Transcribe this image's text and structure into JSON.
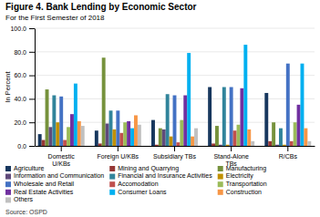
{
  "chart_data": {
    "type": "bar",
    "title": "Figure 4. Bank Lending by Economic Sector",
    "subtitle": "For the First Semester of 2018",
    "ylabel": "In Percent",
    "source": "Source: OSPD",
    "categories": [
      "Domestic\nU/KBs",
      "Foreign U/KBs",
      "Subsidiary TBs",
      "Stand-Alone\nTBs",
      "R/CBs"
    ],
    "series": [
      {
        "name": "Agriculture",
        "color": "#17375e",
        "values": [
          10,
          13,
          22,
          50,
          45
        ]
      },
      {
        "name": "Mining and Quarrying",
        "color": "#953735",
        "values": [
          5,
          2,
          1,
          2,
          4
        ]
      },
      {
        "name": "Manufacturing",
        "color": "#76923c",
        "values": [
          48,
          75,
          15,
          17,
          20
        ]
      },
      {
        "name": "Information and Communication",
        "color": "#604a7b",
        "values": [
          16,
          19,
          14,
          1,
          1
        ]
      },
      {
        "name": "Financial and Insurance Activities",
        "color": "#31849b",
        "values": [
          43,
          30,
          44,
          50,
          15
        ]
      },
      {
        "name": "Electricity",
        "color": "#c09000",
        "values": [
          20,
          14,
          8,
          1,
          1
        ]
      },
      {
        "name": "Wholesale and Retail",
        "color": "#4472c4",
        "values": [
          42,
          30,
          43,
          50,
          70
        ]
      },
      {
        "name": "Accomodation",
        "color": "#c0504d",
        "values": [
          5,
          11,
          3,
          13,
          4
        ]
      },
      {
        "name": "Transportation",
        "color": "#9bbb59",
        "values": [
          16,
          20,
          22,
          18,
          20
        ]
      },
      {
        "name": "Real Estate Activities",
        "color": "#7030a0",
        "values": [
          27,
          21,
          43,
          49,
          35
        ]
      },
      {
        "name": "Consumer Loans",
        "color": "#00b0f0",
        "values": [
          53,
          15,
          79,
          86,
          70
        ]
      },
      {
        "name": "Construction",
        "color": "#f79646",
        "values": [
          21,
          26,
          8,
          14,
          15
        ]
      },
      {
        "name": "Others",
        "color": "#c0c0c0",
        "values": [
          17,
          18,
          15,
          4,
          4
        ]
      }
    ],
    "ylim": [
      0,
      100
    ],
    "yticks": [
      {
        "value": 0,
        "label": "0.0"
      },
      {
        "value": 20,
        "label": "20.0"
      },
      {
        "value": 40,
        "label": "40.0"
      },
      {
        "value": 60,
        "label": "60.0"
      },
      {
        "value": 80,
        "label": "80.0"
      },
      {
        "value": 100,
        "label": "100.0"
      }
    ],
    "grid": true,
    "legend": "bottom"
  }
}
